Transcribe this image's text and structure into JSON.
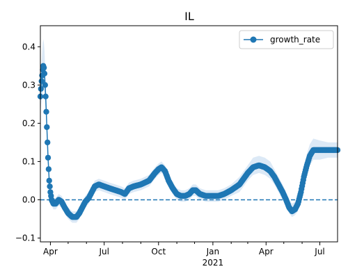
{
  "chart_data": {
    "type": "line",
    "title": "IL",
    "xlabel": "",
    "ylabel": "",
    "x_start": "2020-03-15",
    "x_end": "2021-07-31",
    "ylim": [
      -0.11,
      0.455
    ],
    "grid": false,
    "legend_position": "top-right",
    "y_ticks": [
      {
        "value": -0.1,
        "label": "−0.1"
      },
      {
        "value": 0.0,
        "label": "0.0"
      },
      {
        "value": 0.1,
        "label": "0.1"
      },
      {
        "value": 0.2,
        "label": "0.2"
      },
      {
        "value": 0.3,
        "label": "0.3"
      },
      {
        "value": 0.4,
        "label": "0.4"
      }
    ],
    "x_ticks": [
      {
        "date": "2020-04-01",
        "label": "Apr"
      },
      {
        "date": "2020-07-01",
        "label": "Jul"
      },
      {
        "date": "2020-10-01",
        "label": "Oct"
      },
      {
        "date": "2021-01-01",
        "label": "Jan",
        "sublabel": "2021"
      },
      {
        "date": "2021-04-01",
        "label": "Apr"
      },
      {
        "date": "2021-07-01",
        "label": "Jul"
      }
    ],
    "x_minor_ticks": [
      "2020-05-01",
      "2020-06-01",
      "2020-08-01",
      "2020-09-01",
      "2020-11-01",
      "2020-12-01",
      "2021-02-01",
      "2021-03-01",
      "2021-05-01",
      "2021-06-01"
    ],
    "reference_line": {
      "y": 0.0,
      "style": "dashed"
    },
    "series": [
      {
        "name": "growth_rate",
        "color": "#1f77b4",
        "band_color": "#dce9f6",
        "points": [
          [
            "2020-03-15",
            0.27,
            0.23,
            0.31
          ],
          [
            "2020-03-17",
            0.31,
            0.26,
            0.36
          ],
          [
            "2020-03-19",
            0.34,
            0.28,
            0.41
          ],
          [
            "2020-03-20",
            0.35,
            0.29,
            0.42
          ],
          [
            "2020-03-21",
            0.345,
            0.29,
            0.41
          ],
          [
            "2020-03-22",
            0.33,
            0.28,
            0.39
          ],
          [
            "2020-03-23",
            0.3,
            0.26,
            0.35
          ],
          [
            "2020-03-24",
            0.27,
            0.23,
            0.31
          ],
          [
            "2020-03-25",
            0.23,
            0.2,
            0.27
          ],
          [
            "2020-03-26",
            0.19,
            0.16,
            0.22
          ],
          [
            "2020-03-27",
            0.15,
            0.125,
            0.175
          ],
          [
            "2020-03-28",
            0.11,
            0.09,
            0.13
          ],
          [
            "2020-03-29",
            0.08,
            0.06,
            0.1
          ],
          [
            "2020-03-30",
            0.05,
            0.035,
            0.065
          ],
          [
            "2020-04-01",
            0.02,
            0.005,
            0.035
          ],
          [
            "2020-04-03",
            0.0,
            -0.015,
            0.015
          ],
          [
            "2020-04-06",
            -0.01,
            -0.025,
            0.005
          ],
          [
            "2020-04-10",
            -0.01,
            -0.025,
            0.005
          ],
          [
            "2020-04-15",
            0.0,
            -0.015,
            0.015
          ],
          [
            "2020-04-20",
            -0.005,
            -0.02,
            0.01
          ],
          [
            "2020-04-25",
            -0.02,
            -0.035,
            -0.005
          ],
          [
            "2020-05-01",
            -0.035,
            -0.05,
            -0.02
          ],
          [
            "2020-05-08",
            -0.045,
            -0.06,
            -0.03
          ],
          [
            "2020-05-15",
            -0.045,
            -0.06,
            -0.03
          ],
          [
            "2020-05-20",
            -0.035,
            -0.05,
            -0.02
          ],
          [
            "2020-05-25",
            -0.02,
            -0.035,
            -0.005
          ],
          [
            "2020-05-30",
            -0.005,
            -0.02,
            0.01
          ],
          [
            "2020-06-05",
            0.005,
            -0.01,
            0.02
          ],
          [
            "2020-06-10",
            0.02,
            0.005,
            0.035
          ],
          [
            "2020-06-15",
            0.035,
            0.02,
            0.05
          ],
          [
            "2020-06-22",
            0.04,
            0.025,
            0.055
          ],
          [
            "2020-07-01",
            0.035,
            0.02,
            0.05
          ],
          [
            "2020-07-10",
            0.03,
            0.015,
            0.045
          ],
          [
            "2020-07-20",
            0.025,
            0.01,
            0.04
          ],
          [
            "2020-07-30",
            0.02,
            0.005,
            0.035
          ],
          [
            "2020-08-05",
            0.015,
            0.0,
            0.03
          ],
          [
            "2020-08-12",
            0.03,
            0.015,
            0.045
          ],
          [
            "2020-08-20",
            0.035,
            0.02,
            0.05
          ],
          [
            "2020-09-01",
            0.04,
            0.025,
            0.055
          ],
          [
            "2020-09-15",
            0.05,
            0.035,
            0.065
          ],
          [
            "2020-09-25",
            0.07,
            0.055,
            0.085
          ],
          [
            "2020-10-01",
            0.08,
            0.065,
            0.095
          ],
          [
            "2020-10-06",
            0.085,
            0.07,
            0.1
          ],
          [
            "2020-10-12",
            0.075,
            0.06,
            0.09
          ],
          [
            "2020-10-18",
            0.05,
            0.035,
            0.065
          ],
          [
            "2020-10-25",
            0.03,
            0.015,
            0.045
          ],
          [
            "2020-11-01",
            0.015,
            0.0,
            0.03
          ],
          [
            "2020-11-08",
            0.01,
            -0.005,
            0.025
          ],
          [
            "2020-11-15",
            0.01,
            -0.005,
            0.025
          ],
          [
            "2020-11-22",
            0.015,
            0.0,
            0.03
          ],
          [
            "2020-11-28",
            0.025,
            0.01,
            0.04
          ],
          [
            "2020-12-03",
            0.025,
            0.01,
            0.04
          ],
          [
            "2020-12-10",
            0.015,
            0.0,
            0.03
          ],
          [
            "2020-12-20",
            0.01,
            -0.005,
            0.025
          ],
          [
            "2020-12-30",
            0.01,
            -0.005,
            0.025
          ],
          [
            "2021-01-10",
            0.01,
            -0.005,
            0.025
          ],
          [
            "2021-01-20",
            0.015,
            0.0,
            0.03
          ],
          [
            "2021-02-01",
            0.025,
            0.01,
            0.04
          ],
          [
            "2021-02-15",
            0.04,
            0.02,
            0.06
          ],
          [
            "2021-03-01",
            0.07,
            0.05,
            0.09
          ],
          [
            "2021-03-10",
            0.085,
            0.065,
            0.11
          ],
          [
            "2021-03-20",
            0.09,
            0.07,
            0.115
          ],
          [
            "2021-03-30",
            0.085,
            0.065,
            0.11
          ],
          [
            "2021-04-08",
            0.075,
            0.055,
            0.1
          ],
          [
            "2021-04-15",
            0.06,
            0.04,
            0.08
          ],
          [
            "2021-04-22",
            0.04,
            0.02,
            0.06
          ],
          [
            "2021-04-29",
            0.02,
            0.0,
            0.04
          ],
          [
            "2021-05-05",
            0.0,
            -0.02,
            0.02
          ],
          [
            "2021-05-10",
            -0.02,
            -0.035,
            0.0
          ],
          [
            "2021-05-15",
            -0.03,
            -0.045,
            -0.01
          ],
          [
            "2021-05-20",
            -0.025,
            -0.04,
            -0.005
          ],
          [
            "2021-05-25",
            -0.01,
            -0.03,
            0.01
          ],
          [
            "2021-05-30",
            0.02,
            0.0,
            0.04
          ],
          [
            "2021-06-04",
            0.06,
            0.04,
            0.085
          ],
          [
            "2021-06-09",
            0.09,
            0.07,
            0.12
          ],
          [
            "2021-06-14",
            0.115,
            0.09,
            0.145
          ],
          [
            "2021-06-20",
            0.13,
            0.105,
            0.16
          ],
          [
            "2021-07-01",
            0.13,
            0.105,
            0.155
          ],
          [
            "2021-07-15",
            0.13,
            0.11,
            0.15
          ],
          [
            "2021-07-31",
            0.13,
            0.11,
            0.15
          ]
        ]
      }
    ]
  }
}
